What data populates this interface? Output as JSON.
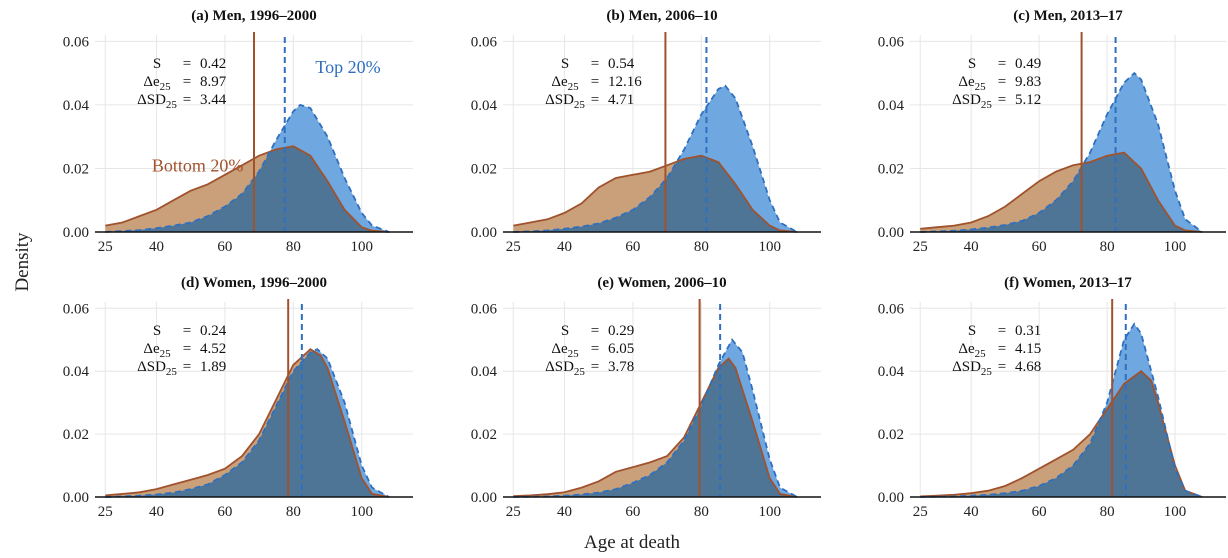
{
  "figure": {
    "ylabel": "Density",
    "xlabel": "Age at death",
    "group_labels": {
      "bottom": "Bottom 20%",
      "top": "Top 20%"
    }
  },
  "colors": {
    "bottom_fill": "#c9a07a",
    "bottom_line": "#a0522d",
    "top_fill": "#6fa8e0",
    "top_line": "#2f6fc0",
    "overlap_fill": "#4f7596",
    "grid": "#e6e6e6"
  },
  "chart_data": [
    {
      "type": "area",
      "title": "(a) Men, 1996–2000",
      "xlabel": "",
      "ylabel": "",
      "xlim": [
        22,
        115
      ],
      "ylim": [
        0,
        0.062
      ],
      "x_ticks": [
        "25",
        "40",
        "60",
        "80",
        "100"
      ],
      "y_ticks": [
        "0.00",
        "0.02",
        "0.04",
        "0.06"
      ],
      "grid": true,
      "stats": {
        "S": "0.42",
        "de25": "8.97",
        "dsd25": "3.44"
      },
      "vlines": {
        "bottom": 68.5,
        "top": 77.5
      },
      "series": [
        {
          "name": "Bottom 20%",
          "x": [
            25,
            30,
            35,
            40,
            45,
            50,
            55,
            60,
            65,
            70,
            75,
            80,
            85,
            90,
            95,
            100,
            103,
            108
          ],
          "y": [
            0.002,
            0.003,
            0.005,
            0.007,
            0.01,
            0.013,
            0.015,
            0.018,
            0.021,
            0.024,
            0.026,
            0.027,
            0.024,
            0.016,
            0.007,
            0.0015,
            0.0004,
            0
          ]
        },
        {
          "name": "Top 20%",
          "x": [
            25,
            30,
            35,
            40,
            45,
            50,
            55,
            60,
            65,
            70,
            75,
            80,
            82,
            85,
            90,
            95,
            100,
            103,
            108
          ],
          "y": [
            0,
            0.0003,
            0.0006,
            0.0012,
            0.002,
            0.003,
            0.005,
            0.008,
            0.012,
            0.019,
            0.029,
            0.038,
            0.04,
            0.039,
            0.03,
            0.017,
            0.006,
            0.002,
            0
          ]
        }
      ]
    },
    {
      "type": "area",
      "title": "(b) Men, 2006–10",
      "xlabel": "",
      "ylabel": "",
      "xlim": [
        22,
        115
      ],
      "ylim": [
        0,
        0.062
      ],
      "x_ticks": [
        "25",
        "40",
        "60",
        "80",
        "100"
      ],
      "y_ticks": [
        "0.00",
        "0.02",
        "0.04",
        "0.06"
      ],
      "grid": true,
      "stats": {
        "S": "0.54",
        "de25": "12.16",
        "dsd25": "4.71"
      },
      "vlines": {
        "bottom": 69.5,
        "top": 81.5
      },
      "series": [
        {
          "name": "Bottom 20%",
          "x": [
            25,
            30,
            35,
            40,
            45,
            50,
            55,
            60,
            65,
            70,
            75,
            80,
            85,
            90,
            95,
            100,
            103,
            108
          ],
          "y": [
            0.002,
            0.003,
            0.004,
            0.006,
            0.009,
            0.014,
            0.017,
            0.018,
            0.019,
            0.021,
            0.023,
            0.024,
            0.022,
            0.015,
            0.007,
            0.002,
            0.0005,
            0
          ]
        },
        {
          "name": "Top 20%",
          "x": [
            25,
            30,
            35,
            40,
            45,
            50,
            55,
            60,
            65,
            70,
            75,
            80,
            85,
            87,
            90,
            95,
            100,
            103,
            108
          ],
          "y": [
            0,
            0.0002,
            0.0005,
            0.001,
            0.0017,
            0.0027,
            0.0045,
            0.007,
            0.011,
            0.017,
            0.026,
            0.037,
            0.045,
            0.046,
            0.042,
            0.027,
            0.01,
            0.003,
            0
          ]
        }
      ]
    },
    {
      "type": "area",
      "title": "(c) Men, 2013–17",
      "xlabel": "",
      "ylabel": "",
      "xlim": [
        22,
        115
      ],
      "ylim": [
        0,
        0.062
      ],
      "x_ticks": [
        "25",
        "40",
        "60",
        "80",
        "100"
      ],
      "y_ticks": [
        "0.00",
        "0.02",
        "0.04",
        "0.06"
      ],
      "grid": true,
      "stats": {
        "S": "0.49",
        "de25": "9.83",
        "dsd25": "5.12"
      },
      "vlines": {
        "bottom": 72.5,
        "top": 82.5
      },
      "series": [
        {
          "name": "Bottom 20%",
          "x": [
            25,
            30,
            35,
            40,
            45,
            50,
            55,
            60,
            65,
            70,
            75,
            80,
            85,
            90,
            95,
            100,
            103,
            108
          ],
          "y": [
            0.001,
            0.0015,
            0.002,
            0.003,
            0.005,
            0.008,
            0.012,
            0.016,
            0.019,
            0.021,
            0.022,
            0.024,
            0.025,
            0.02,
            0.01,
            0.002,
            0.0005,
            0
          ]
        },
        {
          "name": "Top 20%",
          "x": [
            25,
            30,
            35,
            40,
            45,
            50,
            55,
            60,
            65,
            70,
            75,
            80,
            85,
            88,
            90,
            95,
            100,
            103,
            108
          ],
          "y": [
            0,
            0.0002,
            0.0004,
            0.0008,
            0.0014,
            0.0022,
            0.0035,
            0.006,
            0.01,
            0.016,
            0.025,
            0.037,
            0.047,
            0.05,
            0.048,
            0.034,
            0.013,
            0.004,
            0
          ]
        }
      ]
    },
    {
      "type": "area",
      "title": "(d) Women, 1996–2000",
      "xlabel": "",
      "ylabel": "",
      "xlim": [
        22,
        115
      ],
      "ylim": [
        0,
        0.062
      ],
      "x_ticks": [
        "25",
        "40",
        "60",
        "80",
        "100"
      ],
      "y_ticks": [
        "0.00",
        "0.02",
        "0.04",
        "0.06"
      ],
      "grid": true,
      "stats": {
        "S": "0.24",
        "de25": "4.52",
        "dsd25": "1.89"
      },
      "vlines": {
        "bottom": 78.5,
        "top": 82.5
      },
      "series": [
        {
          "name": "Bottom 20%",
          "x": [
            25,
            30,
            35,
            40,
            45,
            50,
            55,
            60,
            65,
            70,
            75,
            80,
            85,
            88,
            90,
            95,
            100,
            103,
            108
          ],
          "y": [
            0.0005,
            0.001,
            0.0015,
            0.0025,
            0.004,
            0.0055,
            0.007,
            0.009,
            0.013,
            0.02,
            0.031,
            0.042,
            0.047,
            0.045,
            0.041,
            0.024,
            0.006,
            0.001,
            0
          ]
        },
        {
          "name": "Top 20%",
          "x": [
            25,
            30,
            35,
            40,
            45,
            50,
            55,
            60,
            65,
            70,
            75,
            80,
            85,
            87,
            90,
            95,
            100,
            103,
            108
          ],
          "y": [
            0,
            0.0002,
            0.0004,
            0.0008,
            0.0014,
            0.0025,
            0.004,
            0.007,
            0.011,
            0.018,
            0.029,
            0.04,
            0.046,
            0.047,
            0.044,
            0.03,
            0.01,
            0.003,
            0
          ]
        }
      ]
    },
    {
      "type": "area",
      "title": "(e) Women, 2006–10",
      "xlabel": "",
      "ylabel": "",
      "xlim": [
        22,
        115
      ],
      "ylim": [
        0,
        0.062
      ],
      "x_ticks": [
        "25",
        "40",
        "60",
        "80",
        "100"
      ],
      "y_ticks": [
        "0.00",
        "0.02",
        "0.04",
        "0.06"
      ],
      "grid": true,
      "stats": {
        "S": "0.29",
        "de25": "6.05",
        "dsd25": "3.78"
      },
      "vlines": {
        "bottom": 79.5,
        "top": 85.5
      },
      "series": [
        {
          "name": "Bottom 20%",
          "x": [
            25,
            30,
            35,
            40,
            45,
            50,
            55,
            60,
            65,
            70,
            75,
            80,
            85,
            88,
            90,
            95,
            100,
            103,
            108
          ],
          "y": [
            0.0003,
            0.0005,
            0.0009,
            0.0015,
            0.003,
            0.005,
            0.008,
            0.0095,
            0.011,
            0.013,
            0.019,
            0.03,
            0.041,
            0.044,
            0.041,
            0.024,
            0.006,
            0.001,
            0
          ]
        },
        {
          "name": "Top 20%",
          "x": [
            25,
            30,
            35,
            40,
            45,
            50,
            55,
            60,
            65,
            70,
            75,
            80,
            85,
            89,
            92,
            95,
            100,
            103,
            108
          ],
          "y": [
            0,
            0.0001,
            0.0002,
            0.0004,
            0.0008,
            0.0014,
            0.0025,
            0.0045,
            0.007,
            0.011,
            0.018,
            0.029,
            0.042,
            0.05,
            0.046,
            0.034,
            0.012,
            0.003,
            0
          ]
        }
      ]
    },
    {
      "type": "area",
      "title": "(f) Women, 2013–17",
      "xlabel": "",
      "ylabel": "",
      "xlim": [
        22,
        115
      ],
      "ylim": [
        0,
        0.062
      ],
      "x_ticks": [
        "25",
        "40",
        "60",
        "80",
        "100"
      ],
      "y_ticks": [
        "0.00",
        "0.02",
        "0.04",
        "0.06"
      ],
      "grid": true,
      "stats": {
        "S": "0.31",
        "de25": "4.15",
        "dsd25": "4.68"
      },
      "vlines": {
        "bottom": 81.5,
        "top": 85.5
      },
      "series": [
        {
          "name": "Bottom 20%",
          "x": [
            25,
            30,
            35,
            40,
            45,
            50,
            55,
            60,
            65,
            70,
            75,
            80,
            85,
            90,
            93,
            95,
            100,
            103,
            108
          ],
          "y": [
            0.0002,
            0.0004,
            0.0007,
            0.0012,
            0.002,
            0.0035,
            0.006,
            0.009,
            0.012,
            0.015,
            0.02,
            0.028,
            0.036,
            0.04,
            0.037,
            0.03,
            0.01,
            0.002,
            0
          ]
        },
        {
          "name": "Top 20%",
          "x": [
            25,
            30,
            35,
            40,
            45,
            50,
            55,
            60,
            65,
            70,
            75,
            80,
            85,
            88,
            90,
            95,
            100,
            103,
            108
          ],
          "y": [
            0,
            0.0001,
            0.0002,
            0.0004,
            0.0007,
            0.0012,
            0.002,
            0.0035,
            0.006,
            0.01,
            0.017,
            0.03,
            0.05,
            0.055,
            0.052,
            0.032,
            0.009,
            0.002,
            0
          ]
        }
      ]
    }
  ]
}
